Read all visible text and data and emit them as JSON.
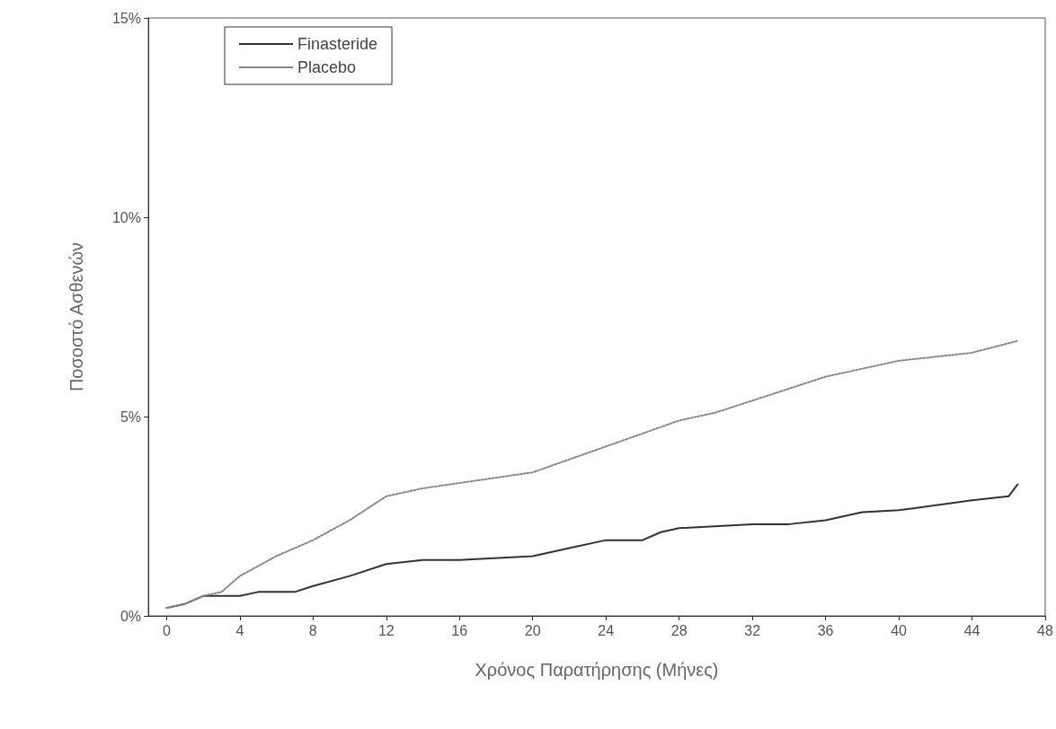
{
  "chart_data": {
    "type": "line",
    "xlabel": "Χρόνος Παρατήρησης (Μήνες)",
    "ylabel": "Ποσοστό Ασθενών",
    "xlim": [
      -1,
      48
    ],
    "xticks": [
      0,
      4,
      8,
      12,
      16,
      20,
      24,
      28,
      32,
      36,
      40,
      44,
      48
    ],
    "ylim": [
      0,
      15
    ],
    "yticks": [
      {
        "value": 0,
        "label": "0%"
      },
      {
        "value": 5,
        "label": "5%"
      },
      {
        "value": 10,
        "label": "10%"
      },
      {
        "value": 15,
        "label": "15%"
      }
    ],
    "grid": false,
    "legend": "top left",
    "marker": "none",
    "series": [
      {
        "name": "Finasteride",
        "color": "#333333",
        "line_style": "solid",
        "x": [
          0,
          1,
          2,
          4,
          5,
          6,
          7,
          8,
          10,
          12,
          14,
          16,
          20,
          22,
          24,
          26,
          27,
          28,
          32,
          34,
          36,
          38,
          40,
          44,
          46,
          46.5
        ],
        "values": [
          0.2,
          0.3,
          0.5,
          0.5,
          0.6,
          0.6,
          0.6,
          0.75,
          1.0,
          1.3,
          1.4,
          1.4,
          1.5,
          1.7,
          1.9,
          1.9,
          2.1,
          2.2,
          2.3,
          2.3,
          2.4,
          2.6,
          2.65,
          2.9,
          3.0,
          3.3
        ]
      },
      {
        "name": "Placebo",
        "color": "#888888",
        "line_style": "dotted",
        "x": [
          0,
          1,
          2,
          3,
          4,
          6,
          7,
          8,
          10,
          12,
          14,
          17,
          20,
          28,
          30,
          32,
          36,
          40,
          44,
          46.5
        ],
        "values": [
          0.2,
          0.3,
          0.5,
          0.6,
          1.0,
          1.5,
          1.7,
          1.9,
          2.4,
          3.0,
          3.2,
          3.4,
          3.6,
          4.9,
          5.1,
          5.4,
          6.0,
          6.4,
          6.6,
          6.9
        ]
      }
    ]
  }
}
